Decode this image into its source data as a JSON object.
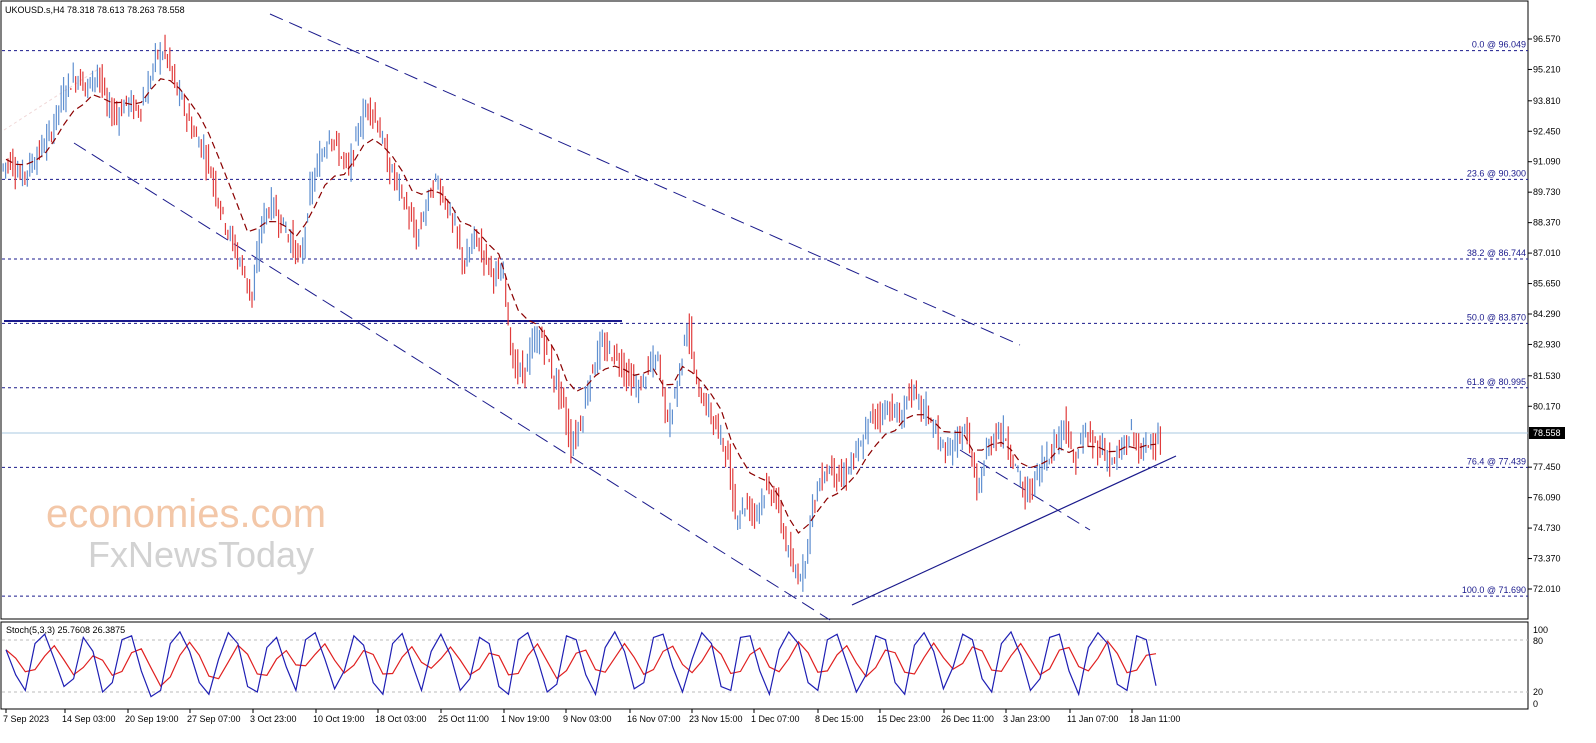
{
  "header": {
    "symbol_ohlc": "UKOUSD.s,H4  78.318 78.613 78.263 78.558"
  },
  "price_axis": [
    "96.570",
    "95.210",
    "93.810",
    "92.450",
    "91.090",
    "89.730",
    "88.370",
    "87.010",
    "85.650",
    "84.290",
    "82.930",
    "81.530",
    "80.170",
    "77.450",
    "76.090",
    "74.730",
    "73.370",
    "72.010"
  ],
  "current_price": "78.558",
  "fib_levels": [
    {
      "label": "0.0 @ 96.049",
      "value": 96.049
    },
    {
      "label": "23.6 @ 90.300",
      "value": 90.3
    },
    {
      "label": "38.2 @ 86.744",
      "value": 86.744
    },
    {
      "label": "50.0 @ 83.870",
      "value": 83.87
    },
    {
      "label": "61.8 @ 80.995",
      "value": 80.995
    },
    {
      "label": "76.4 @ 77.439",
      "value": 77.439
    },
    {
      "label": "100.0 @ 71.690",
      "value": 71.69
    }
  ],
  "time_axis": [
    "7 Sep 2023",
    "14 Sep 03:00",
    "20 Sep 19:00",
    "27 Sep 07:00",
    "3 Oct 23:00",
    "10 Oct 19:00",
    "18 Oct 03:00",
    "25 Oct 11:00",
    "1 Nov 19:00",
    "9 Nov 03:00",
    "16 Nov 07:00",
    "23 Nov 15:00",
    "1 Dec 07:00",
    "8 Dec 15:00",
    "15 Dec 23:00",
    "26 Dec 11:00",
    "3 Jan 23:00",
    "11 Jan 07:00",
    "18 Jan 11:00"
  ],
  "stoch": {
    "label": "Stoch(5,3,3) 25.7608 26.3875",
    "axis": [
      "100",
      "80",
      "20",
      "0"
    ],
    "main_color": "#1f1fb4",
    "signal_color": "#e02020"
  },
  "watermark": {
    "line1": "economies.com",
    "line2": "FxNewsToday"
  },
  "colors": {
    "bull": "#5f8fd0",
    "bear": "#e03c3c",
    "ma": "#8b0000",
    "fib": "#1a1a8c",
    "trend": "#1a1a8c"
  },
  "chart_data": {
    "type": "candlestick",
    "ylim": [
      71.5,
      97.5
    ],
    "closes": [
      91.2,
      90.4,
      90.9,
      91.6,
      92.2,
      93.6,
      94.6,
      94.9,
      94.4,
      95.2,
      93.5,
      93.2,
      93.8,
      93.4,
      94.0,
      95.8,
      96.0,
      94.5,
      93.4,
      92.3,
      91.6,
      90.2,
      88.6,
      87.4,
      86.3,
      85.0,
      88.5,
      89.2,
      88.4,
      87.6,
      86.6,
      89.8,
      91.2,
      92.4,
      91.5,
      90.7,
      92.6,
      93.7,
      92.8,
      91.0,
      90.1,
      89.0,
      87.6,
      89.2,
      90.3,
      89.3,
      88.0,
      86.4,
      87.8,
      86.9,
      86.1,
      85.9,
      82.0,
      81.6,
      82.9,
      83.3,
      81.7,
      80.6,
      78.4,
      79.5,
      81.6,
      82.8,
      82.6,
      82.3,
      81.4,
      80.9,
      81.9,
      82.3,
      79.3,
      81.2,
      84.0,
      81.0,
      80.2,
      79.2,
      78.3,
      75.3,
      75.8,
      75.4,
      76.4,
      76.3,
      74.5,
      72.7,
      72.8,
      75.8,
      77.1,
      77.5,
      76.8,
      77.7,
      78.3,
      79.7,
      79.9,
      80.2,
      79.5,
      80.9,
      80.3,
      79.8,
      78.7,
      77.9,
      78.9,
      79.0,
      76.2,
      78.2,
      79.1,
      78.8,
      77.4,
      76.1,
      76.9,
      77.9,
      78.4,
      79.6,
      77.6,
      78.9,
      78.5,
      78.3,
      77.6,
      78.2,
      79.0,
      78.0,
      78.8,
      78.6
    ],
    "moving_average": "dashed red",
    "fib_retracement": [
      "0.0 @ 96.049",
      "23.6 @ 90.300",
      "38.2 @ 86.744",
      "50.0 @ 83.870",
      "61.8 @ 80.995",
      "76.4 @ 77.439",
      "100.0 @ 71.690"
    ],
    "stoch_main": [
      72,
      40,
      20,
      80,
      92,
      60,
      25,
      35,
      88,
      70,
      18,
      30,
      85,
      90,
      45,
      12,
      20,
      80,
      95,
      70,
      30,
      15,
      60,
      94,
      80,
      25,
      18,
      75,
      88,
      50,
      20,
      85,
      94,
      60,
      22,
      45,
      90,
      78,
      30,
      15,
      80,
      93,
      55,
      20,
      70,
      92,
      65,
      20,
      35,
      88,
      80,
      25,
      15,
      85,
      94,
      60,
      18,
      28,
      90,
      85,
      40,
      15,
      75,
      95,
      70,
      22,
      30,
      88,
      92,
      50,
      18,
      60,
      94,
      80,
      25,
      20,
      88,
      90,
      45,
      15,
      72,
      95,
      80,
      30,
      20,
      85,
      92,
      55,
      18,
      40,
      90,
      85,
      30,
      15,
      78,
      94,
      70,
      22,
      50,
      92,
      85,
      35,
      18,
      80,
      95,
      65,
      20,
      35,
      88,
      92,
      45,
      15,
      75,
      94,
      80,
      28,
      20,
      90,
      85,
      26
    ]
  }
}
